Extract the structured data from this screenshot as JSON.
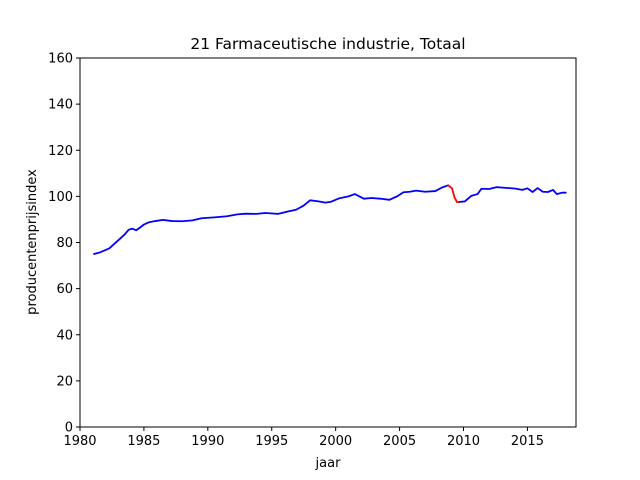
{
  "chart_data": {
    "type": "line",
    "title": "21 Farmaceutische industrie, Totaal",
    "xlabel": "jaar",
    "ylabel": "producentenprijsindex",
    "xlim": [
      1980,
      2018.8
    ],
    "ylim": [
      0,
      160
    ],
    "xticks": [
      1980,
      1985,
      1990,
      1995,
      2000,
      2005,
      2010,
      2015
    ],
    "yticks": [
      0,
      20,
      40,
      60,
      80,
      100,
      120,
      140,
      160
    ],
    "grid": false,
    "legend": "none",
    "series": [
      {
        "color": "#0000ff",
        "points": [
          [
            1981.1,
            75.0
          ],
          [
            1981.5,
            75.6
          ],
          [
            1981.9,
            76.5
          ],
          [
            1982.3,
            77.5
          ],
          [
            1982.7,
            79.5
          ],
          [
            1983.1,
            81.5
          ],
          [
            1983.5,
            83.5
          ],
          [
            1983.8,
            85.5
          ],
          [
            1984.1,
            86.0
          ],
          [
            1984.4,
            85.3
          ],
          [
            1984.7,
            86.5
          ],
          [
            1985.0,
            87.8
          ],
          [
            1985.4,
            88.8
          ],
          [
            1985.9,
            89.3
          ],
          [
            1986.5,
            89.8
          ],
          [
            1987.2,
            89.3
          ],
          [
            1988.0,
            89.2
          ],
          [
            1988.8,
            89.6
          ],
          [
            1989.5,
            90.5
          ],
          [
            1990.5,
            90.9
          ],
          [
            1991.5,
            91.4
          ],
          [
            1992.3,
            92.2
          ],
          [
            1993.0,
            92.5
          ],
          [
            1993.8,
            92.4
          ],
          [
            1994.5,
            92.8
          ],
          [
            1995.5,
            92.4
          ],
          [
            1996.3,
            93.5
          ],
          [
            1996.9,
            94.2
          ],
          [
            1997.5,
            96.0
          ],
          [
            1998.0,
            98.3
          ],
          [
            1998.6,
            97.9
          ],
          [
            1999.2,
            97.3
          ],
          [
            1999.6,
            97.6
          ],
          [
            2000.3,
            99.2
          ],
          [
            2001.0,
            100.0
          ],
          [
            2001.5,
            101.0
          ],
          [
            2002.2,
            99.0
          ],
          [
            2002.8,
            99.3
          ],
          [
            2003.5,
            99.0
          ],
          [
            2004.2,
            98.5
          ],
          [
            2004.8,
            100.0
          ],
          [
            2005.3,
            101.8
          ],
          [
            2005.8,
            102.0
          ],
          [
            2006.3,
            102.5
          ],
          [
            2007.0,
            102.0
          ],
          [
            2007.8,
            102.3
          ],
          [
            2008.3,
            103.8
          ],
          [
            2008.8,
            104.8
          ]
        ]
      },
      {
        "color": "#ff0000",
        "points": [
          [
            2008.8,
            104.8
          ],
          [
            2009.1,
            103.5
          ],
          [
            2009.3,
            99.5
          ],
          [
            2009.5,
            97.5
          ],
          [
            2009.7,
            97.6
          ]
        ]
      },
      {
        "color": "#0000ff",
        "points": [
          [
            2009.7,
            97.6
          ],
          [
            2010.1,
            97.8
          ],
          [
            2010.6,
            100.2
          ],
          [
            2011.1,
            101.0
          ],
          [
            2011.4,
            103.3
          ],
          [
            2012.0,
            103.2
          ],
          [
            2012.6,
            104.0
          ],
          [
            2013.3,
            103.7
          ],
          [
            2014.0,
            103.4
          ],
          [
            2014.6,
            102.8
          ],
          [
            2015.0,
            103.5
          ],
          [
            2015.4,
            101.9
          ],
          [
            2015.8,
            103.6
          ],
          [
            2016.2,
            102.0
          ],
          [
            2016.6,
            101.9
          ],
          [
            2017.0,
            102.8
          ],
          [
            2017.3,
            101.0
          ],
          [
            2017.7,
            101.6
          ],
          [
            2018.0,
            101.6
          ]
        ]
      }
    ]
  }
}
